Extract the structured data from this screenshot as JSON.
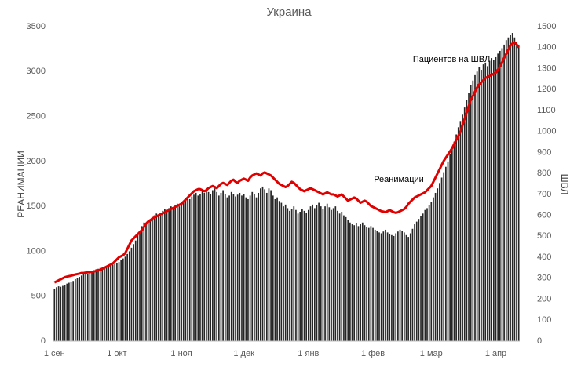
{
  "chart_data": {
    "type": "bar",
    "title": "Украина",
    "y_label": "РЕАНИМАЦИИ",
    "y2_label": "ШВЛ",
    "annotations": [
      "Пациентов на ШВЛ",
      "Реанимации"
    ],
    "categories": [
      "1 сен",
      null,
      null,
      null,
      null,
      null,
      null,
      null,
      null,
      null,
      null,
      null,
      null,
      null,
      null,
      null,
      null,
      null,
      null,
      null,
      null,
      null,
      null,
      null,
      null,
      null,
      null,
      null,
      null,
      null,
      "1 окт",
      null,
      null,
      null,
      null,
      null,
      null,
      null,
      null,
      null,
      null,
      null,
      null,
      null,
      null,
      null,
      null,
      null,
      null,
      null,
      null,
      null,
      null,
      null,
      null,
      null,
      null,
      null,
      null,
      null,
      null,
      "1 ноя",
      null,
      null,
      null,
      null,
      null,
      null,
      null,
      null,
      null,
      null,
      null,
      null,
      null,
      null,
      null,
      null,
      null,
      null,
      null,
      null,
      null,
      null,
      null,
      null,
      null,
      null,
      null,
      null,
      null,
      "1 дек",
      null,
      null,
      null,
      null,
      null,
      null,
      null,
      null,
      null,
      null,
      null,
      null,
      null,
      null,
      null,
      null,
      null,
      null,
      null,
      null,
      null,
      null,
      null,
      null,
      null,
      null,
      null,
      null,
      null,
      null,
      "1 янв",
      null,
      null,
      null,
      null,
      null,
      null,
      null,
      null,
      null,
      null,
      null,
      null,
      null,
      null,
      null,
      null,
      null,
      null,
      null,
      null,
      null,
      null,
      null,
      null,
      null,
      null,
      null,
      null,
      null,
      null,
      "1 фев",
      null,
      null,
      null,
      null,
      null,
      null,
      null,
      null,
      null,
      null,
      null,
      null,
      null,
      null,
      null,
      null,
      null,
      null,
      null,
      null,
      null,
      null,
      null,
      null,
      null,
      null,
      null,
      "1 мар",
      null,
      null,
      null,
      null,
      null,
      null,
      null,
      null,
      null,
      null,
      null,
      null,
      null,
      null,
      null,
      null,
      null,
      null,
      null,
      null,
      null,
      null,
      null,
      null,
      null,
      null,
      null,
      null,
      null,
      null,
      "1 апр",
      null,
      null,
      null,
      null,
      null,
      null,
      null,
      null,
      null,
      null,
      null
    ],
    "series": [
      {
        "name": "Реанимации",
        "type": "bar",
        "color": "#262626",
        "values": [
          585,
          600,
          610,
          605,
          615,
          625,
          640,
          650,
          660,
          670,
          690,
          705,
          715,
          730,
          745,
          755,
          750,
          760,
          775,
          790,
          800,
          805,
          815,
          820,
          825,
          835,
          840,
          845,
          850,
          860,
          870,
          880,
          900,
          920,
          940,
          970,
          1000,
          1040,
          1080,
          1120,
          1180,
          1230,
          1280,
          1320,
          1300,
          1340,
          1360,
          1380,
          1400,
          1420,
          1390,
          1430,
          1450,
          1470,
          1460,
          1480,
          1500,
          1470,
          1510,
          1530,
          1500,
          1520,
          1550,
          1570,
          1600,
          1580,
          1610,
          1630,
          1650,
          1620,
          1640,
          1670,
          1650,
          1690,
          1660,
          1640,
          1680,
          1700,
          1660,
          1620,
          1650,
          1680,
          1640,
          1600,
          1620,
          1660,
          1640,
          1610,
          1630,
          1650,
          1620,
          1640,
          1600,
          1580,
          1620,
          1660,
          1640,
          1600,
          1650,
          1700,
          1720,
          1690,
          1650,
          1700,
          1680,
          1620,
          1580,
          1600,
          1560,
          1540,
          1500,
          1520,
          1480,
          1450,
          1470,
          1500,
          1460,
          1420,
          1440,
          1470,
          1450,
          1430,
          1460,
          1500,
          1520,
          1480,
          1510,
          1540,
          1500,
          1470,
          1500,
          1530,
          1490,
          1460,
          1480,
          1500,
          1450,
          1420,
          1440,
          1400,
          1380,
          1350,
          1320,
          1300,
          1290,
          1310,
          1280,
          1300,
          1320,
          1290,
          1270,
          1260,
          1280,
          1260,
          1240,
          1230,
          1210,
          1200,
          1220,
          1240,
          1210,
          1190,
          1180,
          1170,
          1200,
          1220,
          1240,
          1230,
          1210,
          1180,
          1160,
          1200,
          1250,
          1300,
          1330,
          1360,
          1390,
          1420,
          1460,
          1480,
          1510,
          1550,
          1600,
          1650,
          1700,
          1760,
          1820,
          1880,
          1940,
          2000,
          2080,
          2150,
          2220,
          2300,
          2380,
          2450,
          2520,
          2600,
          2680,
          2760,
          2850,
          2900,
          2960,
          3000,
          3050,
          3020,
          3080,
          3100,
          3060,
          3120,
          3150,
          3130,
          3160,
          3200,
          3230,
          3260,
          3300,
          3350,
          3380,
          3410,
          3430,
          3380,
          3330,
          3300
        ]
      },
      {
        "name": "Пациентов на ШВЛ",
        "type": "line",
        "axis": "y2",
        "color": "#e00000",
        "values": [
          280,
          285,
          290,
          295,
          300,
          305,
          308,
          310,
          312,
          315,
          318,
          320,
          322,
          325,
          325,
          327,
          328,
          330,
          330,
          332,
          335,
          338,
          340,
          345,
          350,
          355,
          360,
          365,
          370,
          380,
          390,
          400,
          405,
          410,
          420,
          440,
          460,
          480,
          490,
          500,
          510,
          520,
          530,
          545,
          560,
          570,
          575,
          585,
          590,
          595,
          600,
          605,
          610,
          615,
          620,
          625,
          630,
          635,
          640,
          645,
          650,
          655,
          665,
          675,
          685,
          695,
          705,
          715,
          720,
          725,
          725,
          720,
          715,
          720,
          730,
          735,
          740,
          735,
          730,
          740,
          750,
          755,
          750,
          745,
          755,
          765,
          770,
          760,
          755,
          765,
          770,
          775,
          770,
          765,
          780,
          790,
          795,
          800,
          795,
          790,
          800,
          805,
          800,
          795,
          790,
          780,
          770,
          760,
          750,
          745,
          740,
          735,
          740,
          750,
          760,
          755,
          745,
          735,
          725,
          720,
          715,
          720,
          725,
          730,
          725,
          720,
          715,
          710,
          705,
          700,
          705,
          710,
          705,
          700,
          700,
          695,
          690,
          695,
          700,
          690,
          680,
          670,
          675,
          680,
          685,
          680,
          670,
          660,
          665,
          670,
          665,
          655,
          645,
          640,
          635,
          630,
          625,
          620,
          618,
          615,
          620,
          625,
          620,
          615,
          612,
          615,
          620,
          625,
          630,
          640,
          655,
          665,
          675,
          685,
          690,
          695,
          700,
          705,
          710,
          720,
          730,
          740,
          760,
          780,
          800,
          820,
          840,
          860,
          875,
          890,
          905,
          920,
          940,
          960,
          980,
          1000,
          1030,
          1060,
          1090,
          1120,
          1150,
          1170,
          1190,
          1210,
          1225,
          1235,
          1245,
          1255,
          1260,
          1265,
          1270,
          1275,
          1280,
          1295,
          1310,
          1330,
          1350,
          1370,
          1390,
          1410,
          1420,
          1425,
          1415,
          1400
        ]
      }
    ],
    "ylim": [
      0,
      3500
    ],
    "yticks": [
      0,
      500,
      1000,
      1500,
      2000,
      2500,
      3000,
      3500
    ],
    "y2lim": [
      0,
      1500
    ],
    "y2ticks": [
      0,
      100,
      200,
      300,
      400,
      500,
      600,
      700,
      800,
      900,
      1000,
      1100,
      1200,
      1300,
      1400,
      1500
    ]
  }
}
